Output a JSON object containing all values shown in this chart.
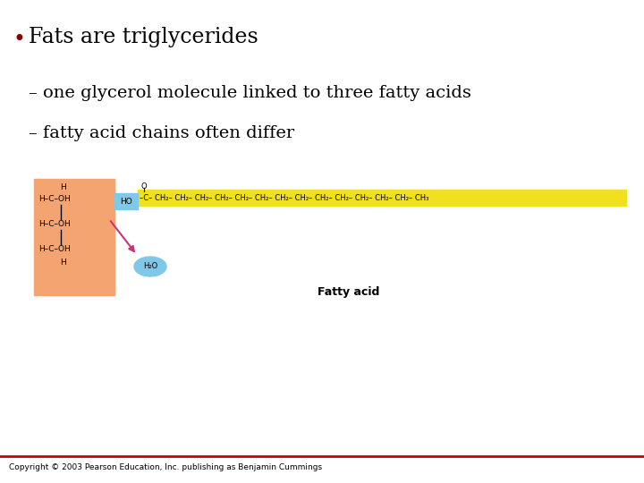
{
  "title_bullet": "•",
  "title_text": "Fats are triglycerides",
  "subtitle1": "– one glycerol molecule linked to three fatty acids",
  "subtitle2": "– fatty acid chains often differ",
  "copyright": "Copyright © 2003 Pearson Education, Inc. publishing as Benjamin Cummings",
  "bullet_color": "#8B0000",
  "title_color": "#000000",
  "subtitle_color": "#000000",
  "bg_color": "#ffffff",
  "glycerol_bg": "#F4A470",
  "fatty_acid_bg": "#F0E020",
  "ho_bg": "#80C8E8",
  "h2o_bg": "#80C8E8",
  "red_line_color": "#CC0000",
  "fatty_acid_label": "Fatty acid",
  "copyright_fontsize": 6.5,
  "title_fontsize": 17,
  "subtitle_fontsize": 14,
  "diagram_fontsize": 6.5,
  "chain_fontsize": 6.0
}
